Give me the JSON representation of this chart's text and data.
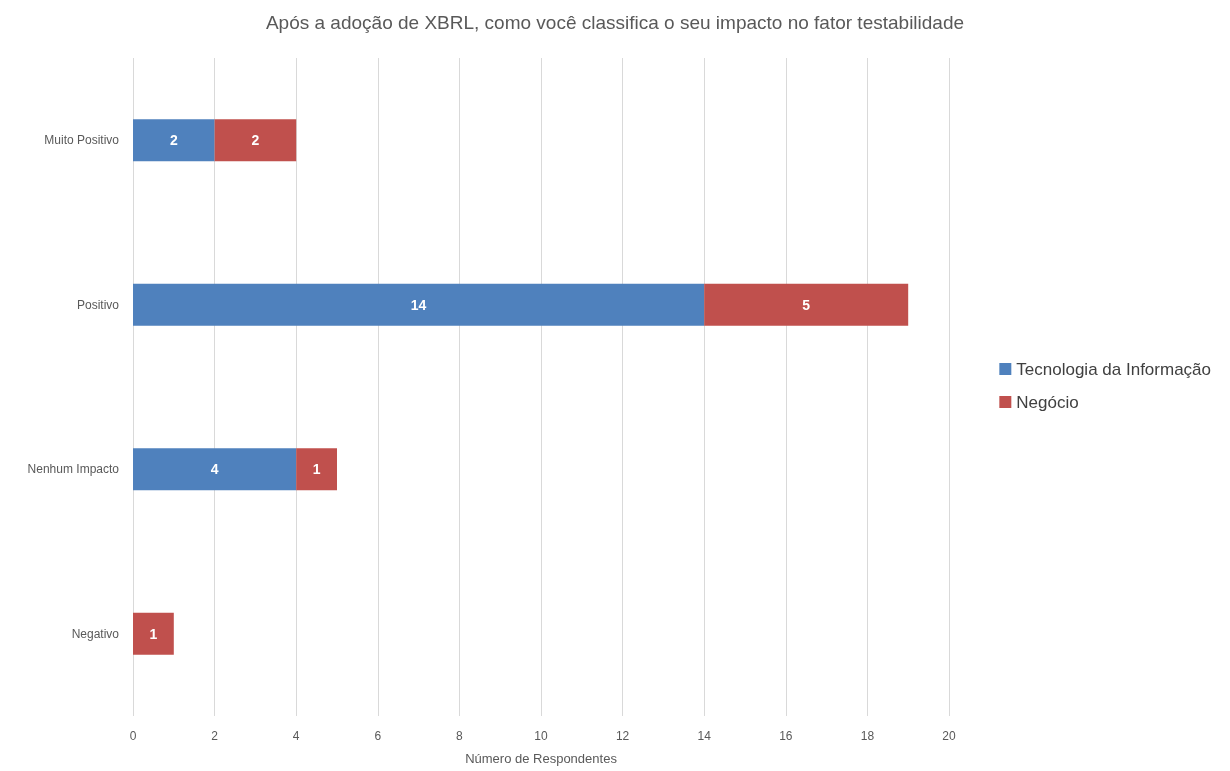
{
  "chart_data": {
    "type": "bar",
    "orientation": "horizontal",
    "stacked": true,
    "title": "Após a adoção de XBRL, como você classifica o seu impacto no fator testabilidade",
    "xlabel": "Número de Respondentes",
    "categories": [
      "Muito Positivo",
      "Positivo",
      "Nenhum Impacto",
      "Negativo"
    ],
    "series": [
      {
        "name": "Tecnologia da Informação",
        "color": "#4f81bd",
        "values": [
          2,
          14,
          4,
          null
        ]
      },
      {
        "name": "Negócio",
        "color": "#c0504d",
        "values": [
          2,
          5,
          1,
          1
        ]
      }
    ],
    "xlim": [
      0,
      20
    ],
    "xticks": [
      0,
      2,
      4,
      6,
      8,
      10,
      12,
      14,
      16,
      18,
      20
    ],
    "grid": "x",
    "legend": "right",
    "data_labels": true
  }
}
